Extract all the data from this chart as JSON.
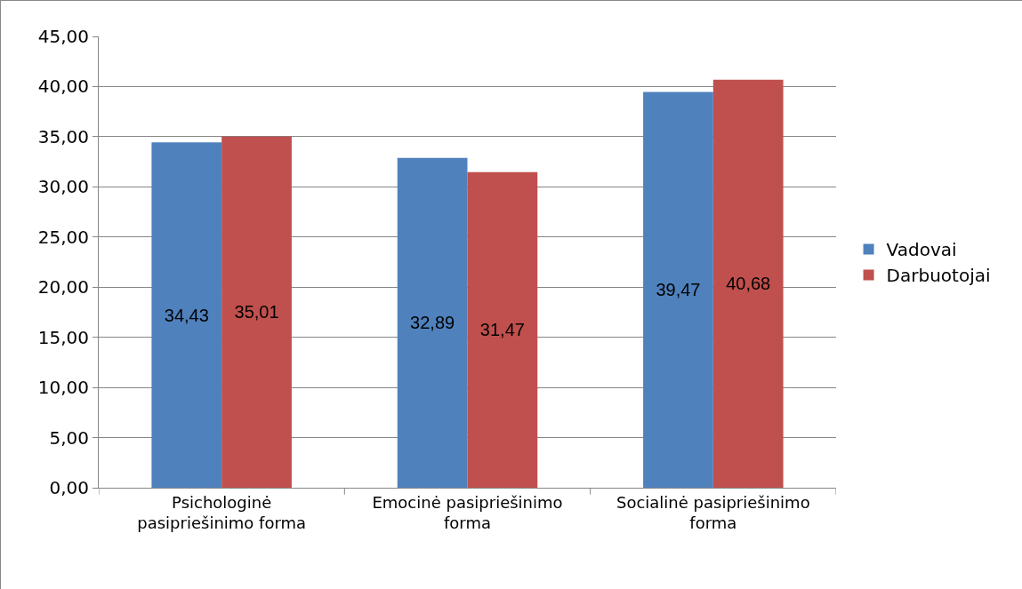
{
  "chart_data": {
    "type": "bar",
    "categories": [
      "Psichologinė pasipriešinimo forma",
      "Emocinė pasipriešinimo forma",
      "Socialinė pasipriešinimo forma"
    ],
    "series": [
      {
        "name": "Vadovai",
        "color": "#4f81bd",
        "values": [
          34.43,
          32.89,
          39.47
        ],
        "value_labels": [
          "34,43",
          "32,89",
          "39,47"
        ]
      },
      {
        "name": "Darbuotojai",
        "color": "#c0504d",
        "values": [
          35.01,
          31.47,
          40.68
        ],
        "value_labels": [
          "35,01",
          "31,47",
          "40,68"
        ]
      }
    ],
    "ylim": [
      0,
      45
    ],
    "yticks": [
      {
        "value": 0,
        "label": "0,00"
      },
      {
        "value": 5,
        "label": "5,00"
      },
      {
        "value": 10,
        "label": "10,00"
      },
      {
        "value": 15,
        "label": "15,00"
      },
      {
        "value": 20,
        "label": "20,00"
      },
      {
        "value": 25,
        "label": "25,00"
      },
      {
        "value": 30,
        "label": "30,00"
      },
      {
        "value": 35,
        "label": "35,00"
      },
      {
        "value": 40,
        "label": "40,00"
      },
      {
        "value": 45,
        "label": "45,00"
      }
    ],
    "grid": "y",
    "legend": "right"
  }
}
